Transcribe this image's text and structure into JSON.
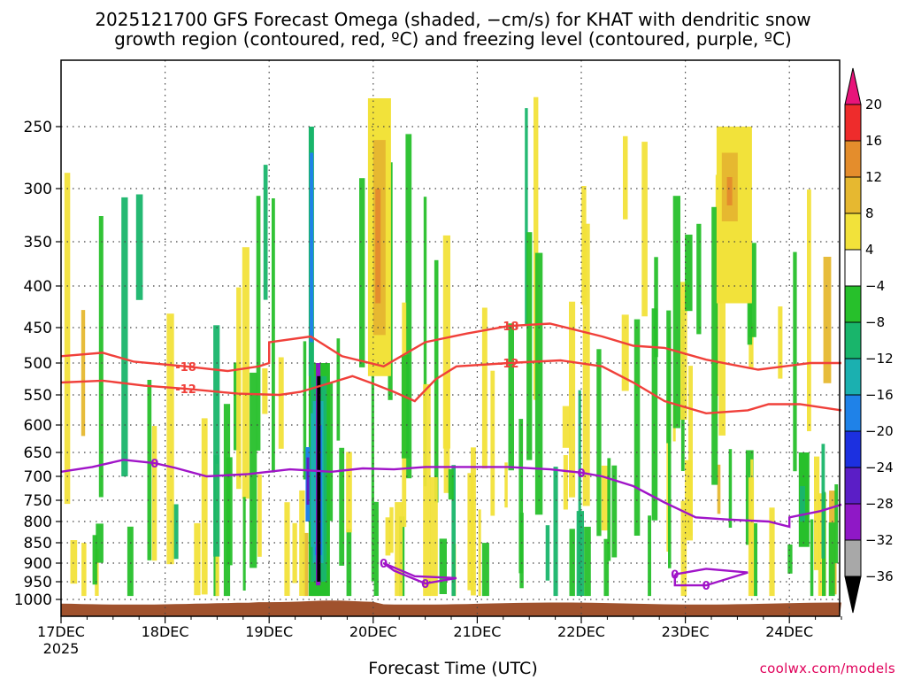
{
  "title_line1": "2025121700 GFS Forecast Omega (shaded, −cm/s) for KHAT with dendritic snow",
  "title_line2": "growth region (contoured, red, ºC) and freezing level (contoured, purple, ºC)",
  "xlabel": "Forecast Time (UTC)",
  "credit": "coolwx.com/models",
  "colors": {
    "omega_pos": [
      "#f2e23a",
      "#e6b830",
      "#e48d2c",
      "#e8452a",
      "#ee2c2c",
      "#e8147a"
    ],
    "omega_neg": [
      "#27c02b",
      "#19b56b",
      "#1bb0b0",
      "#1f82e8",
      "#1c30e0",
      "#5b1ec6",
      "#8f18c6",
      "#a8a8a8",
      "#000000"
    ],
    "red_contour": "#f0403a",
    "purple_contour": "#a014c8",
    "terrain": "#a0522d"
  },
  "chart_data": {
    "type": "heatmap",
    "title": "2025121700 GFS Forecast Omega (shaded, −cm/s) for KHAT with dendritic snow growth region (contoured, red, ºC) and freezing level (contoured, purple, ºC)",
    "xlabel": "Forecast Time (UTC)",
    "ylabel": "",
    "x_ticks": [
      "17DEC\n2025",
      "18DEC",
      "19DEC",
      "20DEC",
      "21DEC",
      "22DEC",
      "23DEC",
      "24DEC"
    ],
    "x_range_days": [
      0,
      7.5
    ],
    "y_ticks": [
      250,
      300,
      350,
      400,
      450,
      500,
      550,
      600,
      650,
      700,
      750,
      800,
      850,
      900,
      950,
      1000
    ],
    "y_range_hPa": [
      200,
      1030
    ],
    "y_scale": "log",
    "colorbar_labels": [
      "20",
      "16",
      "12",
      "8",
      "4",
      "−4",
      "−8",
      "−12",
      "−16",
      "−20",
      "−24",
      "−28",
      "−32",
      "−36"
    ],
    "contours": {
      "minus18": {
        "label": "-18",
        "points": [
          [
            0.0,
            490
          ],
          [
            0.4,
            485
          ],
          [
            0.7,
            498
          ],
          [
            1.2,
            505
          ],
          [
            1.6,
            512
          ],
          [
            1.9,
            505
          ],
          [
            2.0,
            500
          ],
          [
            2.0,
            470
          ],
          [
            2.4,
            462
          ],
          [
            2.7,
            490
          ],
          [
            3.1,
            505
          ],
          [
            3.5,
            470
          ],
          [
            3.9,
            458
          ],
          [
            4.3,
            448
          ],
          [
            4.7,
            445
          ],
          [
            5.2,
            462
          ],
          [
            5.5,
            475
          ],
          [
            5.8,
            478
          ],
          [
            6.2,
            495
          ],
          [
            6.7,
            510
          ],
          [
            7.2,
            500
          ],
          [
            7.5,
            500
          ]
        ]
      },
      "minus12": {
        "label": "-12",
        "points": [
          [
            0.0,
            530
          ],
          [
            0.4,
            527
          ],
          [
            0.8,
            535
          ],
          [
            1.2,
            540
          ],
          [
            1.7,
            548
          ],
          [
            2.1,
            550
          ],
          [
            2.3,
            545
          ],
          [
            2.6,
            530
          ],
          [
            2.8,
            520
          ],
          [
            3.0,
            532
          ],
          [
            3.2,
            545
          ],
          [
            3.4,
            560
          ],
          [
            3.6,
            525
          ],
          [
            3.8,
            505
          ],
          [
            4.3,
            500
          ],
          [
            4.8,
            496
          ],
          [
            5.2,
            505
          ],
          [
            5.5,
            530
          ],
          [
            5.8,
            560
          ],
          [
            6.2,
            580
          ],
          [
            6.6,
            575
          ],
          [
            6.8,
            565
          ],
          [
            7.1,
            565
          ],
          [
            7.5,
            575
          ]
        ]
      },
      "zero": {
        "label": "0",
        "points": [
          [
            0.0,
            690
          ],
          [
            0.3,
            680
          ],
          [
            0.6,
            665
          ],
          [
            0.9,
            672
          ],
          [
            1.1,
            682
          ],
          [
            1.4,
            700
          ],
          [
            1.8,
            695
          ],
          [
            2.2,
            685
          ],
          [
            2.6,
            690
          ],
          [
            2.9,
            683
          ],
          [
            3.2,
            685
          ],
          [
            3.5,
            680
          ],
          [
            3.9,
            680
          ],
          [
            4.3,
            680
          ],
          [
            4.7,
            685
          ],
          [
            5.0,
            692
          ],
          [
            5.2,
            700
          ],
          [
            5.5,
            720
          ],
          [
            5.8,
            755
          ],
          [
            6.1,
            790
          ],
          [
            6.4,
            795
          ],
          [
            6.8,
            800
          ],
          [
            7.0,
            812
          ],
          [
            7.0,
            790
          ],
          [
            7.3,
            775
          ],
          [
            7.5,
            760
          ]
        ]
      },
      "zero_pocket_20dec": {
        "label": "0",
        "points": [
          [
            3.1,
            900
          ],
          [
            3.4,
            935
          ],
          [
            3.8,
            940
          ],
          [
            3.5,
            955
          ],
          [
            3.2,
            920
          ],
          [
            3.1,
            900
          ]
        ]
      },
      "zero_pocket_23dec": {
        "label": "0",
        "points": [
          [
            5.9,
            930
          ],
          [
            6.2,
            915
          ],
          [
            6.6,
            925
          ],
          [
            6.2,
            960
          ],
          [
            5.9,
            960
          ],
          [
            5.9,
            930
          ]
        ]
      }
    },
    "contour_levels": {
      "red": [
        -18,
        -12
      ],
      "purple": [
        0
      ]
    },
    "terrain_top_hPa": 1010
  }
}
